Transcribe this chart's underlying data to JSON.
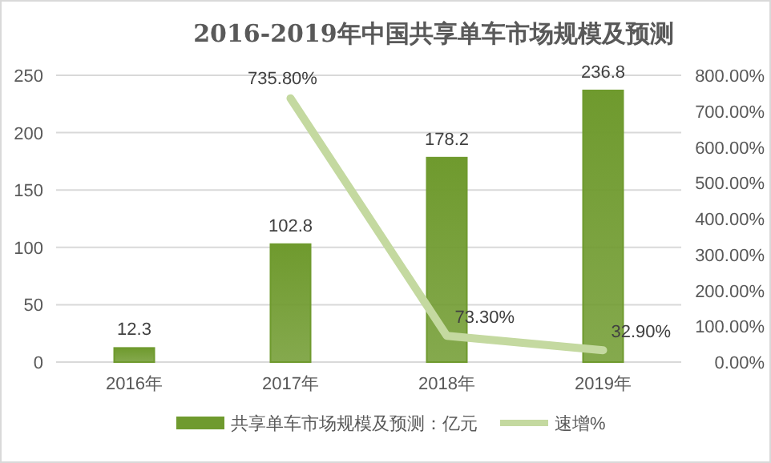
{
  "chart_data": {
    "type": "bar",
    "title": "2016-2019年中国共享单车市场规模及预测",
    "categories": [
      "2016年",
      "2017年",
      "2018年",
      "2019年"
    ],
    "series": [
      {
        "name": "共享单车市场规模及预测：亿元",
        "color": "#6f9a2e",
        "values": [
          12.3,
          102.8,
          178.2,
          236.8
        ],
        "value_labels": [
          "12.3",
          "102.8",
          "178.2",
          "236.8"
        ]
      },
      {
        "name": "速增%",
        "type": "line",
        "axis": "y2",
        "color": "#c4d9a0",
        "values": [
          null,
          735.8,
          73.3,
          32.9
        ],
        "value_labels": [
          null,
          "735.80%",
          "73.30%",
          "32.90%"
        ]
      }
    ],
    "ylim": [
      0,
      250
    ],
    "yticks": [
      0,
      50,
      100,
      150,
      200,
      250
    ],
    "y2lim": [
      0,
      800
    ],
    "y2ticks": [
      {
        "value": 0,
        "label": "0.00%"
      },
      {
        "value": 100,
        "label": "100.00%"
      },
      {
        "value": 200,
        "label": "200.00%"
      },
      {
        "value": 300,
        "label": "300.00%"
      },
      {
        "value": 400,
        "label": "400.00%"
      },
      {
        "value": 500,
        "label": "500.00%"
      },
      {
        "value": 600,
        "label": "600.00%"
      },
      {
        "value": 700,
        "label": "700.00%"
      },
      {
        "value": 800,
        "label": "800.00%"
      }
    ],
    "grid": "y",
    "legend": "bottom",
    "marker": "none",
    "line_style": "solid"
  }
}
